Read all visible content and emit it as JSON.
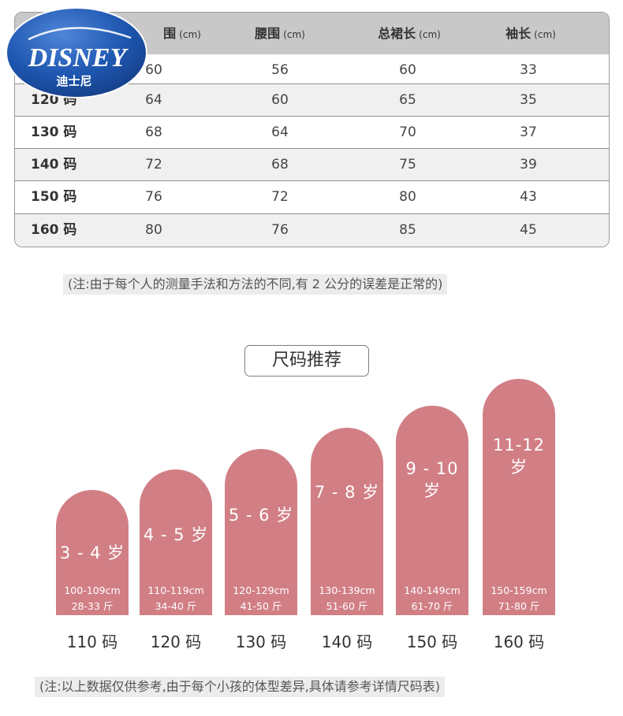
{
  "brand": {
    "logo_text": "DISNEY",
    "logo_subtext": "迪士尼"
  },
  "colors": {
    "pill": "#d17f85",
    "header_bg": "#c8c8c8",
    "logo_blue": "#1b4fa6",
    "note_bg": "#ececec"
  },
  "size_table": {
    "headers": [
      {
        "name": "围",
        "unit": "(cm)"
      },
      {
        "name": "腰围",
        "unit": "(cm)"
      },
      {
        "name": "总裙长",
        "unit": "(cm)"
      },
      {
        "name": "袖长",
        "unit": "(cm)"
      }
    ],
    "rows": [
      {
        "size": "",
        "values": [
          "60",
          "56",
          "60",
          "33"
        ]
      },
      {
        "size": "120 码",
        "values": [
          "64",
          "60",
          "65",
          "35"
        ]
      },
      {
        "size": "130 码",
        "values": [
          "68",
          "64",
          "70",
          "37"
        ]
      },
      {
        "size": "140 码",
        "values": [
          "72",
          "68",
          "75",
          "39"
        ]
      },
      {
        "size": "150 码",
        "values": [
          "76",
          "72",
          "80",
          "43"
        ]
      },
      {
        "size": "160 码",
        "values": [
          "80",
          "76",
          "85",
          "45"
        ]
      }
    ]
  },
  "note_top": "(注:由于每个人的测量手法和方法的不同,有 2 公分的误差是正常的)",
  "recommendation": {
    "title": "尺码推荐",
    "items": [
      {
        "age": "3 - 4 岁",
        "height": "100-109cm",
        "weight": "28-33 斤",
        "code": "110 码"
      },
      {
        "age": "4 - 5 岁",
        "height": "110-119cm",
        "weight": "34-40 斤",
        "code": "120 码"
      },
      {
        "age": "5 - 6 岁",
        "height": "120-129cm",
        "weight": "41-50 斤",
        "code": "130 码"
      },
      {
        "age": "7 - 8 岁",
        "height": "130-139cm",
        "weight": "51-60 斤",
        "code": "140 码"
      },
      {
        "age": "9 - 10 岁",
        "height": "140-149cm",
        "weight": "61-70 斤",
        "code": "150 码"
      },
      {
        "age": "11-12 岁",
        "height": "150-159cm",
        "weight": "71-80 斤",
        "code": "160 码"
      }
    ]
  },
  "note_bottom": "(注:以上数据仅供参考,由于每个小孩的体型差异,具体请参考详情尺码表)"
}
